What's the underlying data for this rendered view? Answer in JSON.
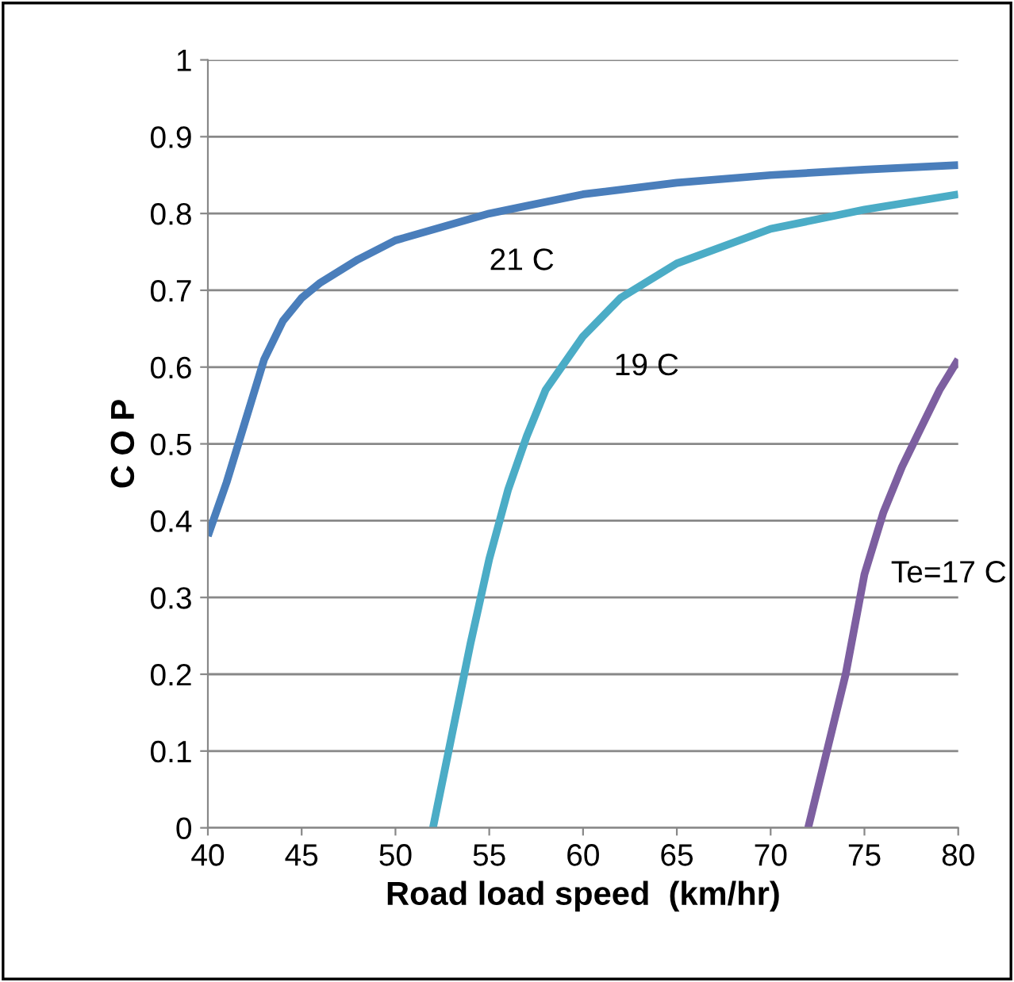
{
  "chart_data": {
    "type": "line",
    "xlabel": "Road load speed  (km/hr)",
    "ylabel": "C O P",
    "xlim": [
      40,
      80
    ],
    "ylim": [
      0,
      1
    ],
    "xticks": [
      40,
      45,
      50,
      55,
      60,
      65,
      70,
      75,
      80
    ],
    "yticks": [
      0,
      0.1,
      0.2,
      0.3,
      0.4,
      0.5,
      0.6,
      0.7,
      0.8,
      0.9,
      1
    ],
    "grid": "y",
    "legend": false,
    "marker": "none",
    "line_style": "solid",
    "series": [
      {
        "name": "21 C",
        "color": "#4a7ebb",
        "x": [
          40,
          41,
          42,
          43,
          44,
          45,
          46,
          48,
          50,
          55,
          60,
          65,
          70,
          75,
          80
        ],
        "values": [
          0.38,
          0.45,
          0.53,
          0.61,
          0.66,
          0.69,
          0.71,
          0.74,
          0.765,
          0.8,
          0.825,
          0.84,
          0.85,
          0.857,
          0.863
        ]
      },
      {
        "name": "19 C",
        "color": "#4bacc6",
        "x": [
          52,
          53,
          54,
          55,
          56,
          57,
          58,
          60,
          62,
          65,
          70,
          75,
          80
        ],
        "values": [
          0,
          0.12,
          0.24,
          0.35,
          0.44,
          0.51,
          0.57,
          0.64,
          0.69,
          0.735,
          0.78,
          0.805,
          0.825
        ]
      },
      {
        "name": "Te=17 C",
        "color": "#7d5fa0",
        "x": [
          72,
          73,
          74,
          75,
          76,
          77,
          78,
          79,
          80
        ],
        "values": [
          0,
          0.1,
          0.2,
          0.33,
          0.41,
          0.47,
          0.52,
          0.57,
          0.61
        ]
      }
    ]
  }
}
